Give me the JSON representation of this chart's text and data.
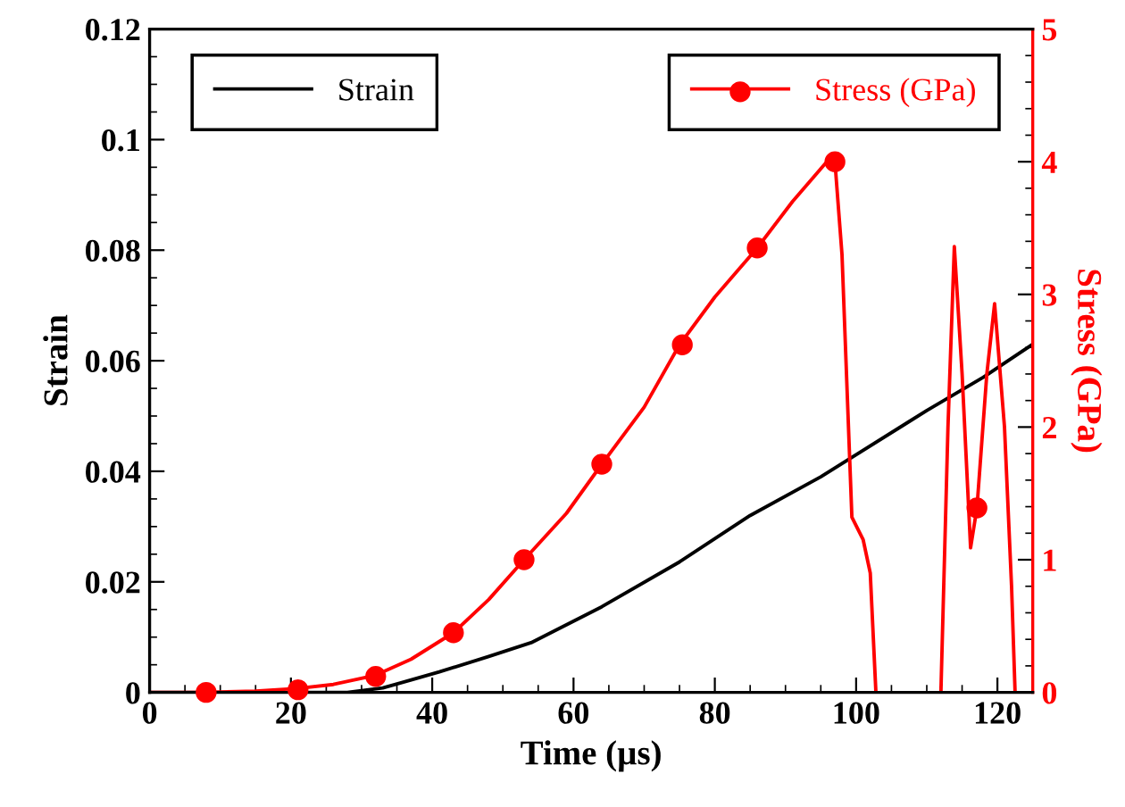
{
  "chart_data": {
    "type": "line",
    "xlabel": "Time (µs)",
    "ylabel": "Strain",
    "y2label": "Stress (GPa)",
    "xlim": [
      0,
      125
    ],
    "xticks": [
      0,
      20,
      40,
      60,
      80,
      100,
      120
    ],
    "ylim": [
      0,
      0.12
    ],
    "yticks": [
      0,
      0.02,
      0.04,
      0.06,
      0.08,
      0.1,
      0.12
    ],
    "y2lim": [
      0,
      5
    ],
    "y2ticks": [
      0,
      1,
      2,
      3,
      4,
      5
    ],
    "grid": false,
    "legend": "top",
    "series": [
      {
        "name": "Strain",
        "color": "#000000",
        "axis": "y",
        "x": [
          0,
          28,
          33,
          41,
          48,
          54,
          64,
          75,
          85,
          95,
          100,
          110,
          118,
          125
        ],
        "values": [
          0,
          0,
          0.0008,
          0.0037,
          0.0065,
          0.009,
          0.0155,
          0.0236,
          0.032,
          0.039,
          0.043,
          0.051,
          0.057,
          0.063
        ]
      },
      {
        "name": "Stress (GPa)",
        "color": "#ff0000",
        "axis": "y2",
        "x": [
          0,
          8,
          15,
          21,
          26,
          32,
          37,
          43,
          48,
          53,
          59,
          64,
          70,
          75,
          80,
          86,
          91,
          96.5,
          97,
          98,
          99.4,
          101,
          102,
          102.8,
          107,
          112,
          113,
          113.9,
          115,
          116.2,
          117.1,
          118.5,
          119.6,
          121,
          122,
          122.5
        ],
        "values": [
          0,
          0,
          0.01,
          0.03,
          0.06,
          0.13,
          0.25,
          0.45,
          0.7,
          1.0,
          1.35,
          1.72,
          2.15,
          2.62,
          2.98,
          3.35,
          3.7,
          4.04,
          4.0,
          3.3,
          1.32,
          1.15,
          0.9,
          0,
          null,
          0,
          2.0,
          3.36,
          2.4,
          1.09,
          1.39,
          2.4,
          2.93,
          2.0,
          0.8,
          0
        ]
      },
      {
        "color": "#ff0000",
        "type": "scatter",
        "axis": "y2",
        "marker": "circle",
        "x": [
          8,
          21,
          32,
          43,
          53,
          64,
          75.4,
          86,
          97,
          117.1
        ],
        "values": [
          0,
          0.02,
          0.12,
          0.45,
          1.0,
          1.72,
          2.62,
          3.35,
          4.0,
          1.39
        ]
      }
    ]
  }
}
